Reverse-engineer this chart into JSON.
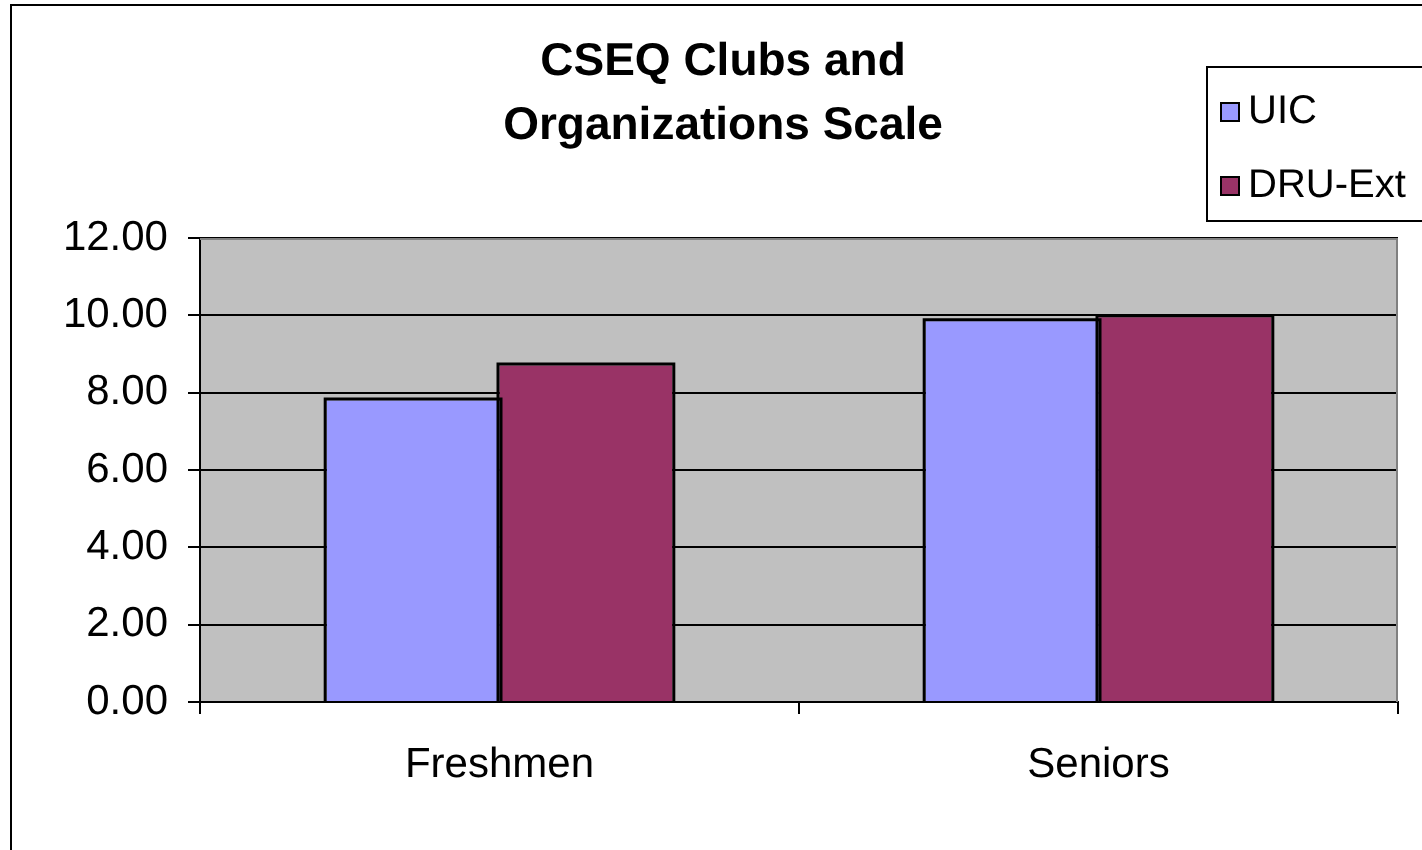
{
  "chart_data": {
    "type": "bar",
    "title": "CSEQ Clubs and Organizations Scale",
    "categories": [
      "Freshmen",
      "Seniors"
    ],
    "series": [
      {
        "name": "UIC",
        "color": "#9999ff",
        "values": [
          7.8,
          9.85
        ]
      },
      {
        "name": "DRU-Ext",
        "color": "#993366",
        "values": [
          8.7,
          9.95
        ]
      }
    ],
    "ylim": [
      0,
      12
    ],
    "yticks": [
      {
        "value": 0,
        "label": "0.00"
      },
      {
        "value": 2,
        "label": "2.00"
      },
      {
        "value": 4,
        "label": "4.00"
      },
      {
        "value": 6,
        "label": "6.00"
      },
      {
        "value": 8,
        "label": "8.00"
      },
      {
        "value": 10,
        "label": "10.00"
      },
      {
        "value": 12,
        "label": "12.00"
      }
    ],
    "grid": "y",
    "legend": "top right"
  }
}
